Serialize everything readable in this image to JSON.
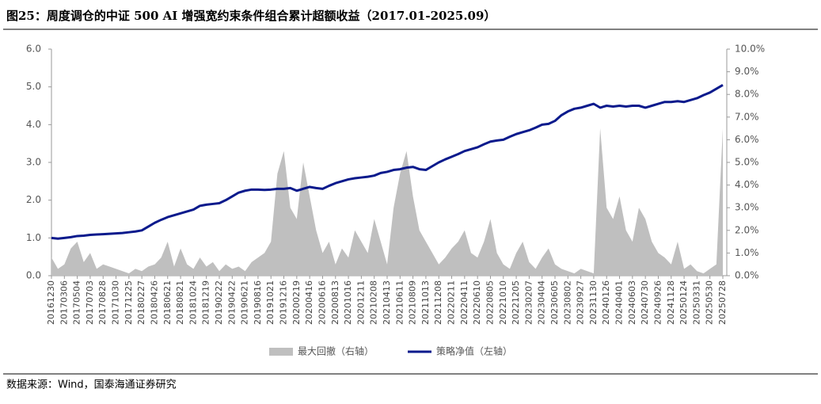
{
  "chart_data": {
    "type": "line-area",
    "title": "图25：周度调仓的中证 500 AI 增强宽约束条件组合累计超额收益（2017.01-2025.09）",
    "source": "数据来源：Wind，国泰海通证券研究",
    "categories": [
      "20161230",
      null,
      "20170306",
      null,
      "20170504",
      null,
      "20170703",
      null,
      "20170828",
      null,
      "20171030",
      null,
      "20171225",
      null,
      "20180227",
      null,
      "20180426",
      null,
      "20180621",
      null,
      "20180821",
      null,
      "20181024",
      null,
      "20181219",
      null,
      "20190222",
      null,
      "20190422",
      null,
      "20190621",
      null,
      "20190816",
      null,
      "20191021",
      null,
      "20191216",
      null,
      "20200219",
      null,
      "20200416",
      null,
      "20200616",
      null,
      "20200813",
      null,
      "20201016",
      null,
      "20201211",
      null,
      "20210208",
      null,
      "20210413",
      null,
      "20210611",
      null,
      "20210809",
      null,
      "20211013",
      null,
      "20211208",
      null,
      "20220211",
      null,
      "20220411",
      null,
      "20220610",
      null,
      "20220805",
      null,
      "20221010",
      null,
      "20221205",
      null,
      "20230207",
      null,
      "20230404",
      null,
      "20230605",
      null,
      "20230802",
      null,
      "20230927",
      null,
      "20231130",
      null,
      "20240126",
      null,
      "20240401",
      null,
      "20240603",
      null,
      "20240730",
      null,
      "20240926",
      null,
      "20241128",
      null,
      "20250124",
      null,
      "20250331",
      null,
      "20250530",
      null,
      "20250728"
    ],
    "series": [
      {
        "name": "最大回撤（右轴）",
        "color": "#bfbfbf",
        "axis": "y2",
        "kind": "area",
        "values": [
          0.8,
          0.3,
          0.5,
          1.2,
          1.5,
          0.6,
          1.0,
          0.3,
          0.5,
          0.4,
          0.3,
          0.2,
          0.1,
          0.3,
          0.2,
          0.4,
          0.5,
          0.8,
          1.5,
          0.4,
          1.2,
          0.5,
          0.3,
          0.8,
          0.4,
          0.6,
          0.2,
          0.5,
          0.3,
          0.4,
          0.2,
          0.6,
          0.8,
          1.0,
          1.5,
          4.5,
          5.5,
          3.0,
          2.5,
          5.0,
          3.5,
          2.0,
          1.0,
          1.5,
          0.5,
          1.2,
          0.8,
          2.0,
          1.5,
          1.0,
          2.5,
          1.5,
          0.5,
          3.0,
          4.5,
          5.5,
          3.5,
          2.0,
          1.5,
          1.0,
          0.5,
          0.8,
          1.2,
          1.5,
          2.0,
          1.0,
          0.8,
          1.5,
          2.5,
          1.0,
          0.5,
          0.3,
          1.0,
          1.5,
          0.6,
          0.3,
          0.8,
          1.2,
          0.5,
          0.3,
          0.2,
          0.1,
          0.3,
          0.2,
          0.1,
          6.5,
          3.0,
          2.5,
          3.5,
          2.0,
          1.5,
          3.0,
          2.5,
          1.5,
          1.0,
          0.8,
          0.5,
          1.5,
          0.3,
          0.5,
          0.2,
          0.1,
          0.3,
          0.5,
          6.5
        ]
      },
      {
        "name": "策略净值（左轴）",
        "color": "#0a1a8c",
        "kind": "line",
        "values": [
          1.0,
          0.98,
          1.0,
          1.02,
          1.05,
          1.06,
          1.08,
          1.09,
          1.1,
          1.11,
          1.12,
          1.13,
          1.15,
          1.17,
          1.2,
          1.3,
          1.4,
          1.48,
          1.55,
          1.6,
          1.65,
          1.7,
          1.75,
          1.85,
          1.88,
          1.9,
          1.92,
          2.0,
          2.1,
          2.2,
          2.25,
          2.28,
          2.28,
          2.27,
          2.28,
          2.3,
          2.3,
          2.32,
          2.25,
          2.3,
          2.35,
          2.32,
          2.3,
          2.38,
          2.45,
          2.5,
          2.55,
          2.58,
          2.6,
          2.62,
          2.65,
          2.72,
          2.75,
          2.8,
          2.82,
          2.86,
          2.88,
          2.82,
          2.8,
          2.9,
          3.0,
          3.08,
          3.15,
          3.22,
          3.3,
          3.35,
          3.4,
          3.48,
          3.55,
          3.58,
          3.6,
          3.68,
          3.75,
          3.8,
          3.85,
          3.92,
          4.0,
          4.02,
          4.1,
          4.25,
          4.35,
          4.42,
          4.45,
          4.5,
          4.55,
          4.45,
          4.5,
          4.48,
          4.5,
          4.48,
          4.5,
          4.5,
          4.45,
          4.5,
          4.55,
          4.6,
          4.6,
          4.62,
          4.6,
          4.65,
          4.7,
          4.78,
          4.85,
          4.95,
          5.05
        ]
      }
    ],
    "ylim": [
      0,
      6
    ],
    "yticks": [
      {
        "value": 0,
        "label": "0.0"
      },
      {
        "value": 1,
        "label": "1.0"
      },
      {
        "value": 2,
        "label": "2.0"
      },
      {
        "value": 3,
        "label": "3.0"
      },
      {
        "value": 4,
        "label": "4.0"
      },
      {
        "value": 5,
        "label": "5.0"
      },
      {
        "value": 6,
        "label": "6.0"
      }
    ],
    "y2lim": [
      0,
      10
    ],
    "y2ticks": [
      {
        "value": 0,
        "label": "0.0%"
      },
      {
        "value": 1,
        "label": "1.0%"
      },
      {
        "value": 2,
        "label": "2.0%"
      },
      {
        "value": 3,
        "label": "3.0%"
      },
      {
        "value": 4,
        "label": "4.0%"
      },
      {
        "value": 5,
        "label": "5.0%"
      },
      {
        "value": 6,
        "label": "6.0%"
      },
      {
        "value": 7,
        "label": "7.0%"
      },
      {
        "value": 8,
        "label": "8.0%"
      },
      {
        "value": 9,
        "label": "9.0%"
      },
      {
        "value": 10,
        "label": "10.0%"
      }
    ],
    "grid": false,
    "legend": "bottom"
  }
}
